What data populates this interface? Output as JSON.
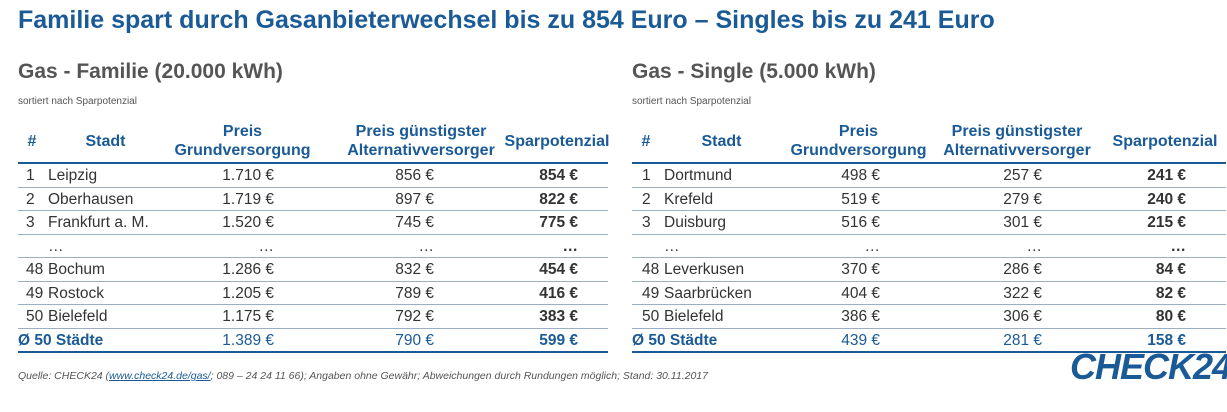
{
  "title": "Familie spart durch Gasanbieterwechsel bis zu 854 Euro – Singles bis zu 241 Euro",
  "headers": {
    "nr": "#",
    "stadt": "Stadt",
    "grund_l1": "Preis",
    "grund_l2": "Grundversorgung",
    "alt_l1": "Preis günstigster",
    "alt_l2": "Alternativversorger",
    "spar": "Sparpotenzial"
  },
  "left": {
    "title": "Gas - Familie (20.000 kWh)",
    "subtitle": "sortiert nach Sparpotenzial",
    "rows": [
      {
        "nr": "1",
        "stadt": "Leipzig",
        "grund": "1.710 €",
        "alt": "856 €",
        "spar": "854 €"
      },
      {
        "nr": "2",
        "stadt": "Oberhausen",
        "grund": "1.719 €",
        "alt": "897 €",
        "spar": "822 €"
      },
      {
        "nr": "3",
        "stadt": "Frankfurt a. M.",
        "grund": "1.520 €",
        "alt": "745 €",
        "spar": "775 €"
      },
      {
        "nr": "",
        "stadt": "…",
        "grund": "…",
        "alt": "…",
        "spar": "…"
      },
      {
        "nr": "48",
        "stadt": "Bochum",
        "grund": "1.286 €",
        "alt": "832 €",
        "spar": "454 €"
      },
      {
        "nr": "49",
        "stadt": "Rostock",
        "grund": "1.205 €",
        "alt": "789 €",
        "spar": "416 €"
      },
      {
        "nr": "50",
        "stadt": "Bielefeld",
        "grund": "1.175 €",
        "alt": "792 €",
        "spar": "383 €"
      }
    ],
    "avg": {
      "label": "Ø 50 Städte",
      "grund": "1.389 €",
      "alt": "790 €",
      "spar": "599 €"
    }
  },
  "right": {
    "title": "Gas - Single (5.000 kWh)",
    "subtitle": "sortiert nach Sparpotenzial",
    "rows": [
      {
        "nr": "1",
        "stadt": "Dortmund",
        "grund": "498 €",
        "alt": "257 €",
        "spar": "241 €"
      },
      {
        "nr": "2",
        "stadt": "Krefeld",
        "grund": "519 €",
        "alt": "279 €",
        "spar": "240 €"
      },
      {
        "nr": "3",
        "stadt": "Duisburg",
        "grund": "516 €",
        "alt": "301 €",
        "spar": "215 €"
      },
      {
        "nr": "",
        "stadt": "…",
        "grund": "…",
        "alt": "…",
        "spar": "…"
      },
      {
        "nr": "48",
        "stadt": "Leverkusen",
        "grund": "370 €",
        "alt": "286 €",
        "spar": "84 €"
      },
      {
        "nr": "49",
        "stadt": "Saarbrücken",
        "grund": "404 €",
        "alt": "322 €",
        "spar": "82 €"
      },
      {
        "nr": "50",
        "stadt": "Bielefeld",
        "grund": "386 €",
        "alt": "306 €",
        "spar": "80 €"
      }
    ],
    "avg": {
      "label": "Ø 50 Städte",
      "grund": "439 €",
      "alt": "281 €",
      "spar": "158 €"
    }
  },
  "footer": {
    "prefix": "Quelle: CHECK24 (",
    "link": "www.check24.de/gas/",
    "suffix": "; 089 – 24 24 11 66); Angaben ohne Gewähr; Abweichungen durch Rundungen möglich; Stand: 30.11.2017"
  },
  "logo": "CHECK24",
  "colors": {
    "accent": "#1a5a96",
    "text": "#333333"
  }
}
